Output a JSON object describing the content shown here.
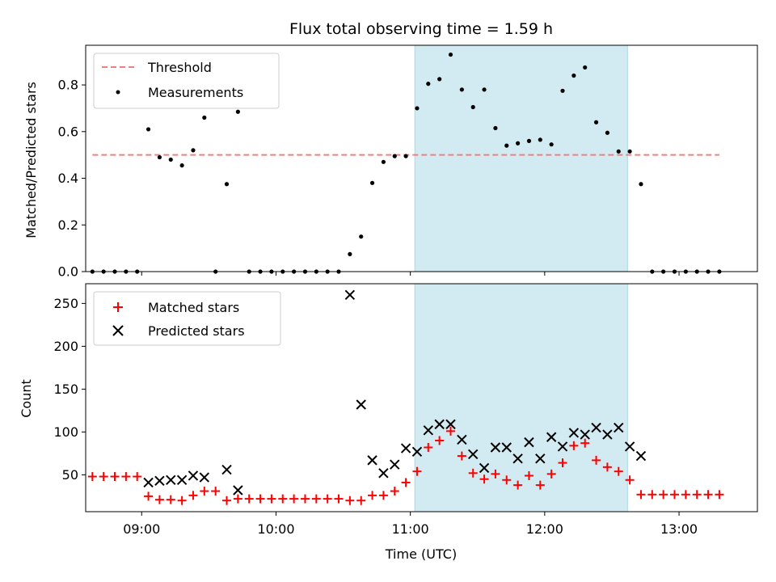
{
  "figure": {
    "title": "Flux total observing time = 1.59 h",
    "xlabel": "Time (UTC)"
  },
  "chart_data": [
    {
      "type": "scatter",
      "ylabel": "Matched/Predicted stars",
      "ylim": [
        0,
        0.97
      ],
      "yticks": [
        0.0,
        0.2,
        0.4,
        0.6,
        0.8
      ],
      "ytick_labels": [
        "0.0",
        "0.2",
        "0.4",
        "0.6",
        "0.8"
      ],
      "xlim": [
        "08:35",
        "13:35"
      ],
      "xticks": [
        "09:00",
        "10:00",
        "11:00",
        "12:00",
        "13:00"
      ],
      "shaded_span": [
        "11:02",
        "12:37"
      ],
      "shade_color": "#add8e6",
      "legend": "top-left",
      "threshold": {
        "name": "Threshold",
        "y": 0.5,
        "x_start": "08:38",
        "x_end": "13:18",
        "color": "#f08080"
      },
      "series": [
        {
          "name": "Measurements",
          "marker": "dot",
          "color": "#000000",
          "points": [
            [
              "08:38",
              0.0
            ],
            [
              "08:43",
              0.0
            ],
            [
              "08:48",
              0.0
            ],
            [
              "08:53",
              0.0
            ],
            [
              "08:58",
              0.0
            ],
            [
              "09:03",
              0.61
            ],
            [
              "09:08",
              0.49
            ],
            [
              "09:13",
              0.48
            ],
            [
              "09:18",
              0.455
            ],
            [
              "09:23",
              0.52
            ],
            [
              "09:28",
              0.66
            ],
            [
              "09:33",
              0.0
            ],
            [
              "09:38",
              0.375
            ],
            [
              "09:43",
              0.685
            ],
            [
              "09:48",
              0.0
            ],
            [
              "09:53",
              0.0
            ],
            [
              "09:58",
              0.0
            ],
            [
              "10:03",
              0.0
            ],
            [
              "10:08",
              0.0
            ],
            [
              "10:13",
              0.0
            ],
            [
              "10:18",
              0.0
            ],
            [
              "10:23",
              0.0
            ],
            [
              "10:28",
              0.0
            ],
            [
              "10:33",
              0.075
            ],
            [
              "10:38",
              0.15
            ],
            [
              "10:43",
              0.38
            ],
            [
              "10:48",
              0.47
            ],
            [
              "10:53",
              0.495
            ],
            [
              "10:58",
              0.495
            ],
            [
              "11:03",
              0.7
            ],
            [
              "11:08",
              0.805
            ],
            [
              "11:13",
              0.825
            ],
            [
              "11:18",
              0.93
            ],
            [
              "11:23",
              0.78
            ],
            [
              "11:28",
              0.705
            ],
            [
              "11:33",
              0.78
            ],
            [
              "11:38",
              0.615
            ],
            [
              "11:43",
              0.54
            ],
            [
              "11:48",
              0.55
            ],
            [
              "11:53",
              0.56
            ],
            [
              "11:58",
              0.565
            ],
            [
              "12:03",
              0.545
            ],
            [
              "12:08",
              0.775
            ],
            [
              "12:13",
              0.84
            ],
            [
              "12:18",
              0.875
            ],
            [
              "12:23",
              0.64
            ],
            [
              "12:28",
              0.595
            ],
            [
              "12:33",
              0.515
            ],
            [
              "12:38",
              0.515
            ],
            [
              "12:43",
              0.375
            ],
            [
              "12:48",
              0.0
            ],
            [
              "12:53",
              0.0
            ],
            [
              "12:58",
              0.0
            ],
            [
              "13:03",
              0.0
            ],
            [
              "13:08",
              0.0
            ],
            [
              "13:13",
              0.0
            ],
            [
              "13:18",
              0.0
            ]
          ]
        }
      ]
    },
    {
      "type": "scatter",
      "ylabel": "Count",
      "ylim": [
        7,
        273
      ],
      "yticks": [
        50,
        100,
        150,
        200,
        250
      ],
      "ytick_labels": [
        "50",
        "100",
        "150",
        "200",
        "250"
      ],
      "xlim": [
        "08:35",
        "13:35"
      ],
      "xticks": [
        "09:00",
        "10:00",
        "11:00",
        "12:00",
        "13:00"
      ],
      "xtick_labels": [
        "09:00",
        "10:00",
        "11:00",
        "12:00",
        "13:00"
      ],
      "shaded_span": [
        "11:02",
        "12:37"
      ],
      "shade_color": "#add8e6",
      "legend": "top-left",
      "series": [
        {
          "name": "Matched stars",
          "marker": "plus",
          "color": "#ff0000",
          "points": [
            [
              "08:38",
              48
            ],
            [
              "08:43",
              48
            ],
            [
              "08:48",
              48
            ],
            [
              "08:53",
              48
            ],
            [
              "08:58",
              48
            ],
            [
              "09:03",
              25
            ],
            [
              "09:08",
              21
            ],
            [
              "09:13",
              21
            ],
            [
              "09:18",
              20
            ],
            [
              "09:23",
              26
            ],
            [
              "09:28",
              31
            ],
            [
              "09:33",
              31
            ],
            [
              "09:38",
              20
            ],
            [
              "09:43",
              22
            ],
            [
              "09:48",
              22
            ],
            [
              "09:53",
              22
            ],
            [
              "09:58",
              22
            ],
            [
              "10:03",
              22
            ],
            [
              "10:08",
              22
            ],
            [
              "10:13",
              22
            ],
            [
              "10:18",
              22
            ],
            [
              "10:23",
              22
            ],
            [
              "10:28",
              22
            ],
            [
              "10:33",
              20
            ],
            [
              "10:38",
              20
            ],
            [
              "10:43",
              26
            ],
            [
              "10:48",
              26
            ],
            [
              "10:53",
              31
            ],
            [
              "10:58",
              41
            ],
            [
              "11:03",
              54
            ],
            [
              "11:08",
              82
            ],
            [
              "11:13",
              90
            ],
            [
              "11:18",
              101
            ],
            [
              "11:23",
              72
            ],
            [
              "11:28",
              52
            ],
            [
              "11:33",
              45
            ],
            [
              "11:38",
              51
            ],
            [
              "11:43",
              44
            ],
            [
              "11:48",
              38
            ],
            [
              "11:53",
              49
            ],
            [
              "11:58",
              38
            ],
            [
              "12:03",
              51
            ],
            [
              "12:08",
              64
            ],
            [
              "12:13",
              84
            ],
            [
              "12:18",
              87
            ],
            [
              "12:23",
              67
            ],
            [
              "12:28",
              59
            ],
            [
              "12:33",
              54
            ],
            [
              "12:38",
              44
            ],
            [
              "12:43",
              27
            ],
            [
              "12:48",
              27
            ],
            [
              "12:53",
              27
            ],
            [
              "12:58",
              27
            ],
            [
              "13:03",
              27
            ],
            [
              "13:08",
              27
            ],
            [
              "13:13",
              27
            ],
            [
              "13:18",
              27
            ]
          ]
        },
        {
          "name": "Predicted stars",
          "marker": "x",
          "color": "#000000",
          "points": [
            [
              "09:03",
              41
            ],
            [
              "09:08",
              43
            ],
            [
              "09:13",
              44
            ],
            [
              "09:18",
              44
            ],
            [
              "09:23",
              49
            ],
            [
              "09:28",
              47
            ],
            [
              "09:38",
              56
            ],
            [
              "09:43",
              32
            ],
            [
              "10:33",
              260
            ],
            [
              "10:38",
              132
            ],
            [
              "10:43",
              67
            ],
            [
              "10:48",
              52
            ],
            [
              "10:53",
              62
            ],
            [
              "10:58",
              81
            ],
            [
              "11:03",
              77
            ],
            [
              "11:08",
              102
            ],
            [
              "11:13",
              109
            ],
            [
              "11:18",
              109
            ],
            [
              "11:23",
              91
            ],
            [
              "11:28",
              74
            ],
            [
              "11:33",
              58
            ],
            [
              "11:38",
              82
            ],
            [
              "11:43",
              82
            ],
            [
              "11:48",
              69
            ],
            [
              "11:53",
              88
            ],
            [
              "11:58",
              69
            ],
            [
              "12:03",
              94
            ],
            [
              "12:08",
              83
            ],
            [
              "12:13",
              99
            ],
            [
              "12:18",
              97
            ],
            [
              "12:23",
              105
            ],
            [
              "12:28",
              97
            ],
            [
              "12:33",
              105
            ],
            [
              "12:38",
              83
            ],
            [
              "12:43",
              72
            ]
          ]
        }
      ]
    }
  ]
}
